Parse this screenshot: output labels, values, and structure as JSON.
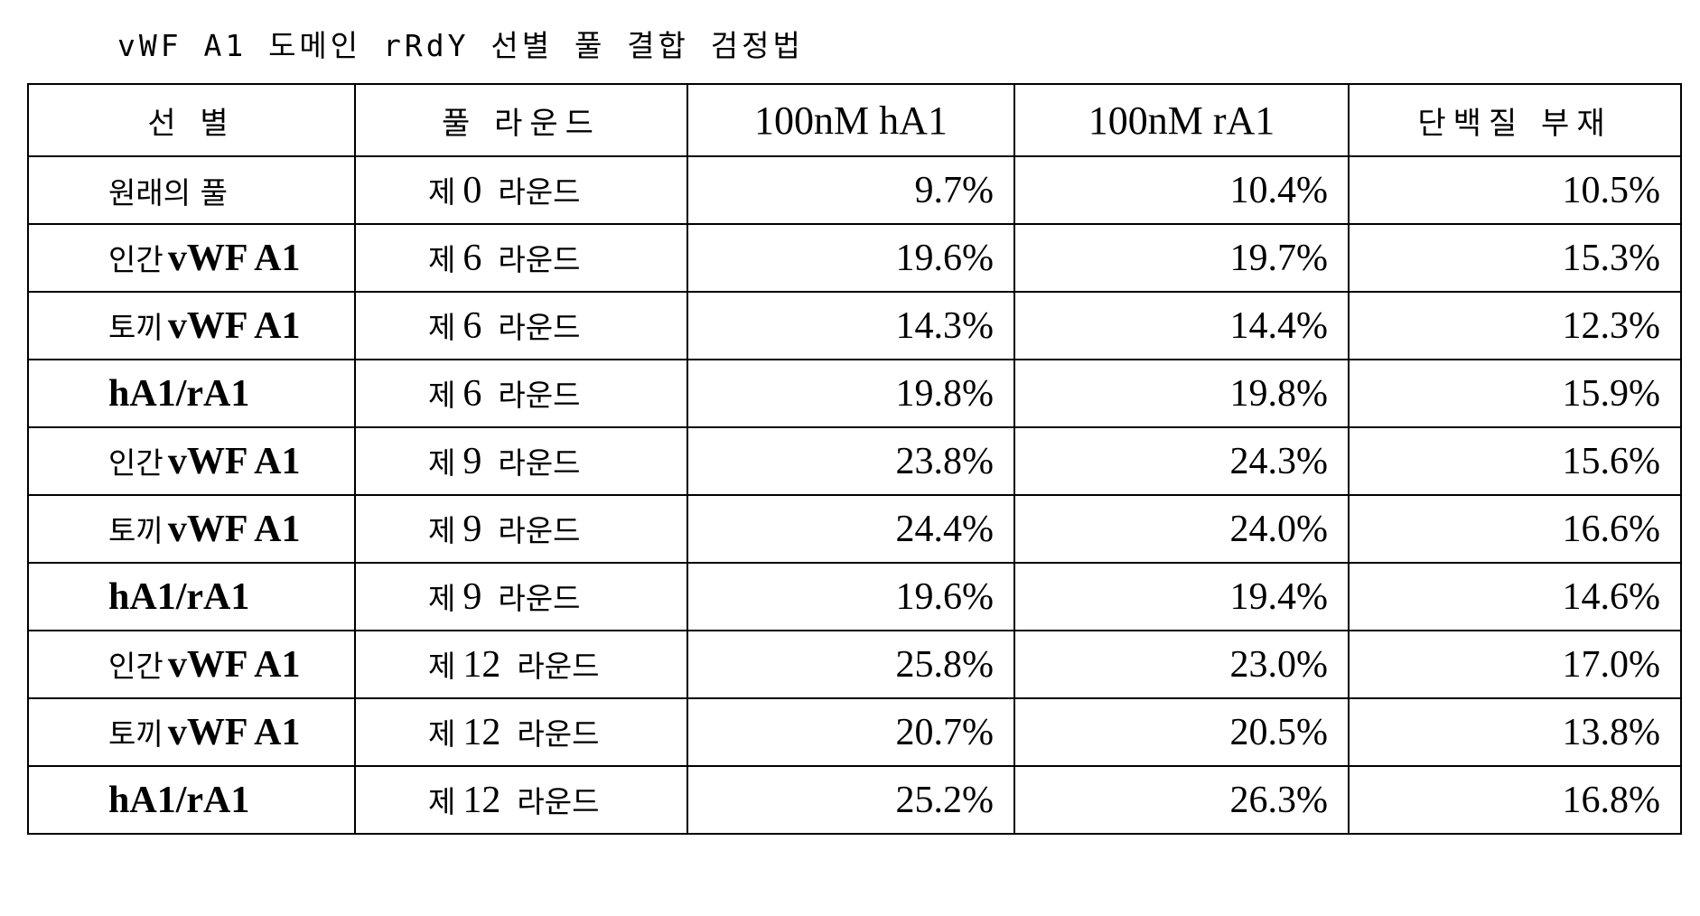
{
  "title": "vWF A1 도메인 rRdY 선별 풀 결합 검정법",
  "headers": {
    "selection": "선 별",
    "pool_round": "풀 라운드",
    "h_a1": "100nM hA1",
    "r_a1": "100nM rA1",
    "no_protein": "단백질 부재"
  },
  "rows": [
    {
      "sel_kr": "원래의 풀",
      "sel_en": "",
      "round_prefix": "제",
      "round_num": "0",
      "round_suffix": "라운드",
      "h_a1": "9.7%",
      "r_a1": "10.4%",
      "no_protein": "10.5%"
    },
    {
      "sel_kr": "인간",
      "sel_en": "vWF A1",
      "round_prefix": "제",
      "round_num": "6",
      "round_suffix": "라운드",
      "h_a1": "19.6%",
      "r_a1": "19.7%",
      "no_protein": "15.3%"
    },
    {
      "sel_kr": "토끼",
      "sel_en": "vWF A1",
      "round_prefix": "제",
      "round_num": "6",
      "round_suffix": "라운드",
      "h_a1": "14.3%",
      "r_a1": "14.4%",
      "no_protein": "12.3%"
    },
    {
      "sel_kr": "",
      "sel_en": "hA1/rA1",
      "round_prefix": "제",
      "round_num": "6",
      "round_suffix": "라운드",
      "h_a1": "19.8%",
      "r_a1": "19.8%",
      "no_protein": "15.9%"
    },
    {
      "sel_kr": "인간",
      "sel_en": "vWF A1",
      "round_prefix": "제",
      "round_num": "9",
      "round_suffix": "라운드",
      "h_a1": "23.8%",
      "r_a1": "24.3%",
      "no_protein": "15.6%"
    },
    {
      "sel_kr": "토끼",
      "sel_en": "vWF A1",
      "round_prefix": "제",
      "round_num": "9",
      "round_suffix": "라운드",
      "h_a1": "24.4%",
      "r_a1": "24.0%",
      "no_protein": "16.6%"
    },
    {
      "sel_kr": "",
      "sel_en": "hA1/rA1",
      "round_prefix": "제",
      "round_num": "9",
      "round_suffix": "라운드",
      "h_a1": "19.6%",
      "r_a1": "19.4%",
      "no_protein": "14.6%"
    },
    {
      "sel_kr": "인간",
      "sel_en": "vWF A1",
      "round_prefix": "제",
      "round_num": "12",
      "round_suffix": "라운드",
      "h_a1": "25.8%",
      "r_a1": "23.0%",
      "no_protein": "17.0%"
    },
    {
      "sel_kr": "토끼",
      "sel_en": "vWF A1",
      "round_prefix": "제",
      "round_num": "12",
      "round_suffix": "라운드",
      "h_a1": "20.7%",
      "r_a1": "20.5%",
      "no_protein": "13.8%"
    },
    {
      "sel_kr": "",
      "sel_en": "hA1/rA1",
      "round_prefix": "제",
      "round_num": "12",
      "round_suffix": "라운드",
      "h_a1": "25.2%",
      "r_a1": "26.3%",
      "no_protein": "16.8%"
    }
  ]
}
